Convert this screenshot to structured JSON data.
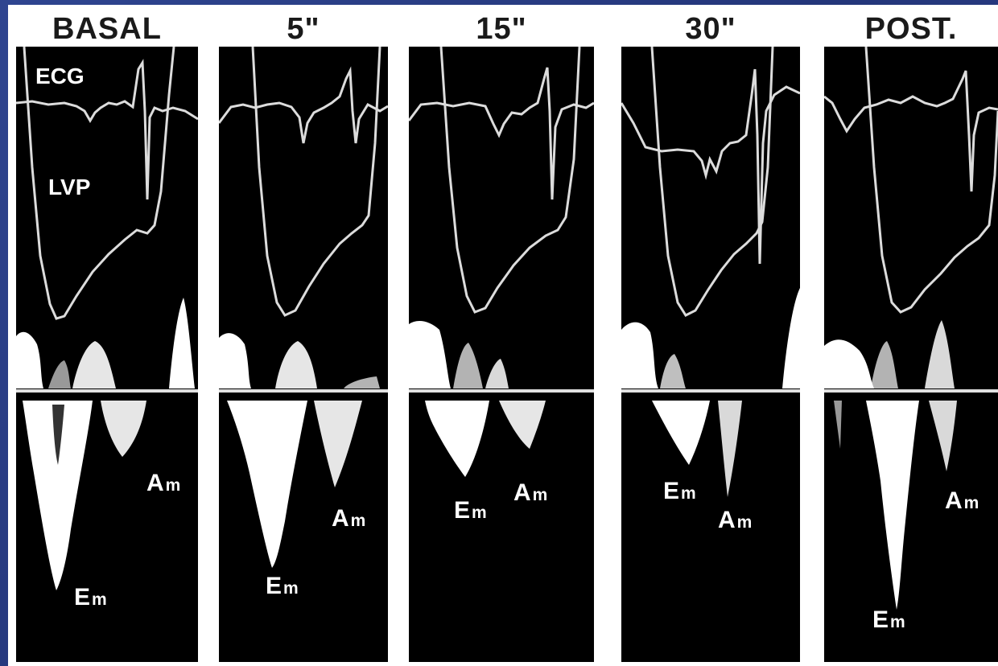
{
  "columns": [
    {
      "header": "BASAL",
      "labels": {
        "ecg": "ECG",
        "lvp": "LVP"
      }
    },
    {
      "header": "5\""
    },
    {
      "header": "15\""
    },
    {
      "header": "30\""
    },
    {
      "header": "POST."
    }
  ],
  "wave_labels": {
    "e_main": "E",
    "e_sub": "m",
    "a_main": "A",
    "a_sub": "m"
  },
  "colors": {
    "background": "#2b3f86",
    "panel": "#000000",
    "trace": "#dcdcdc",
    "doppler": "#ffffff"
  }
}
